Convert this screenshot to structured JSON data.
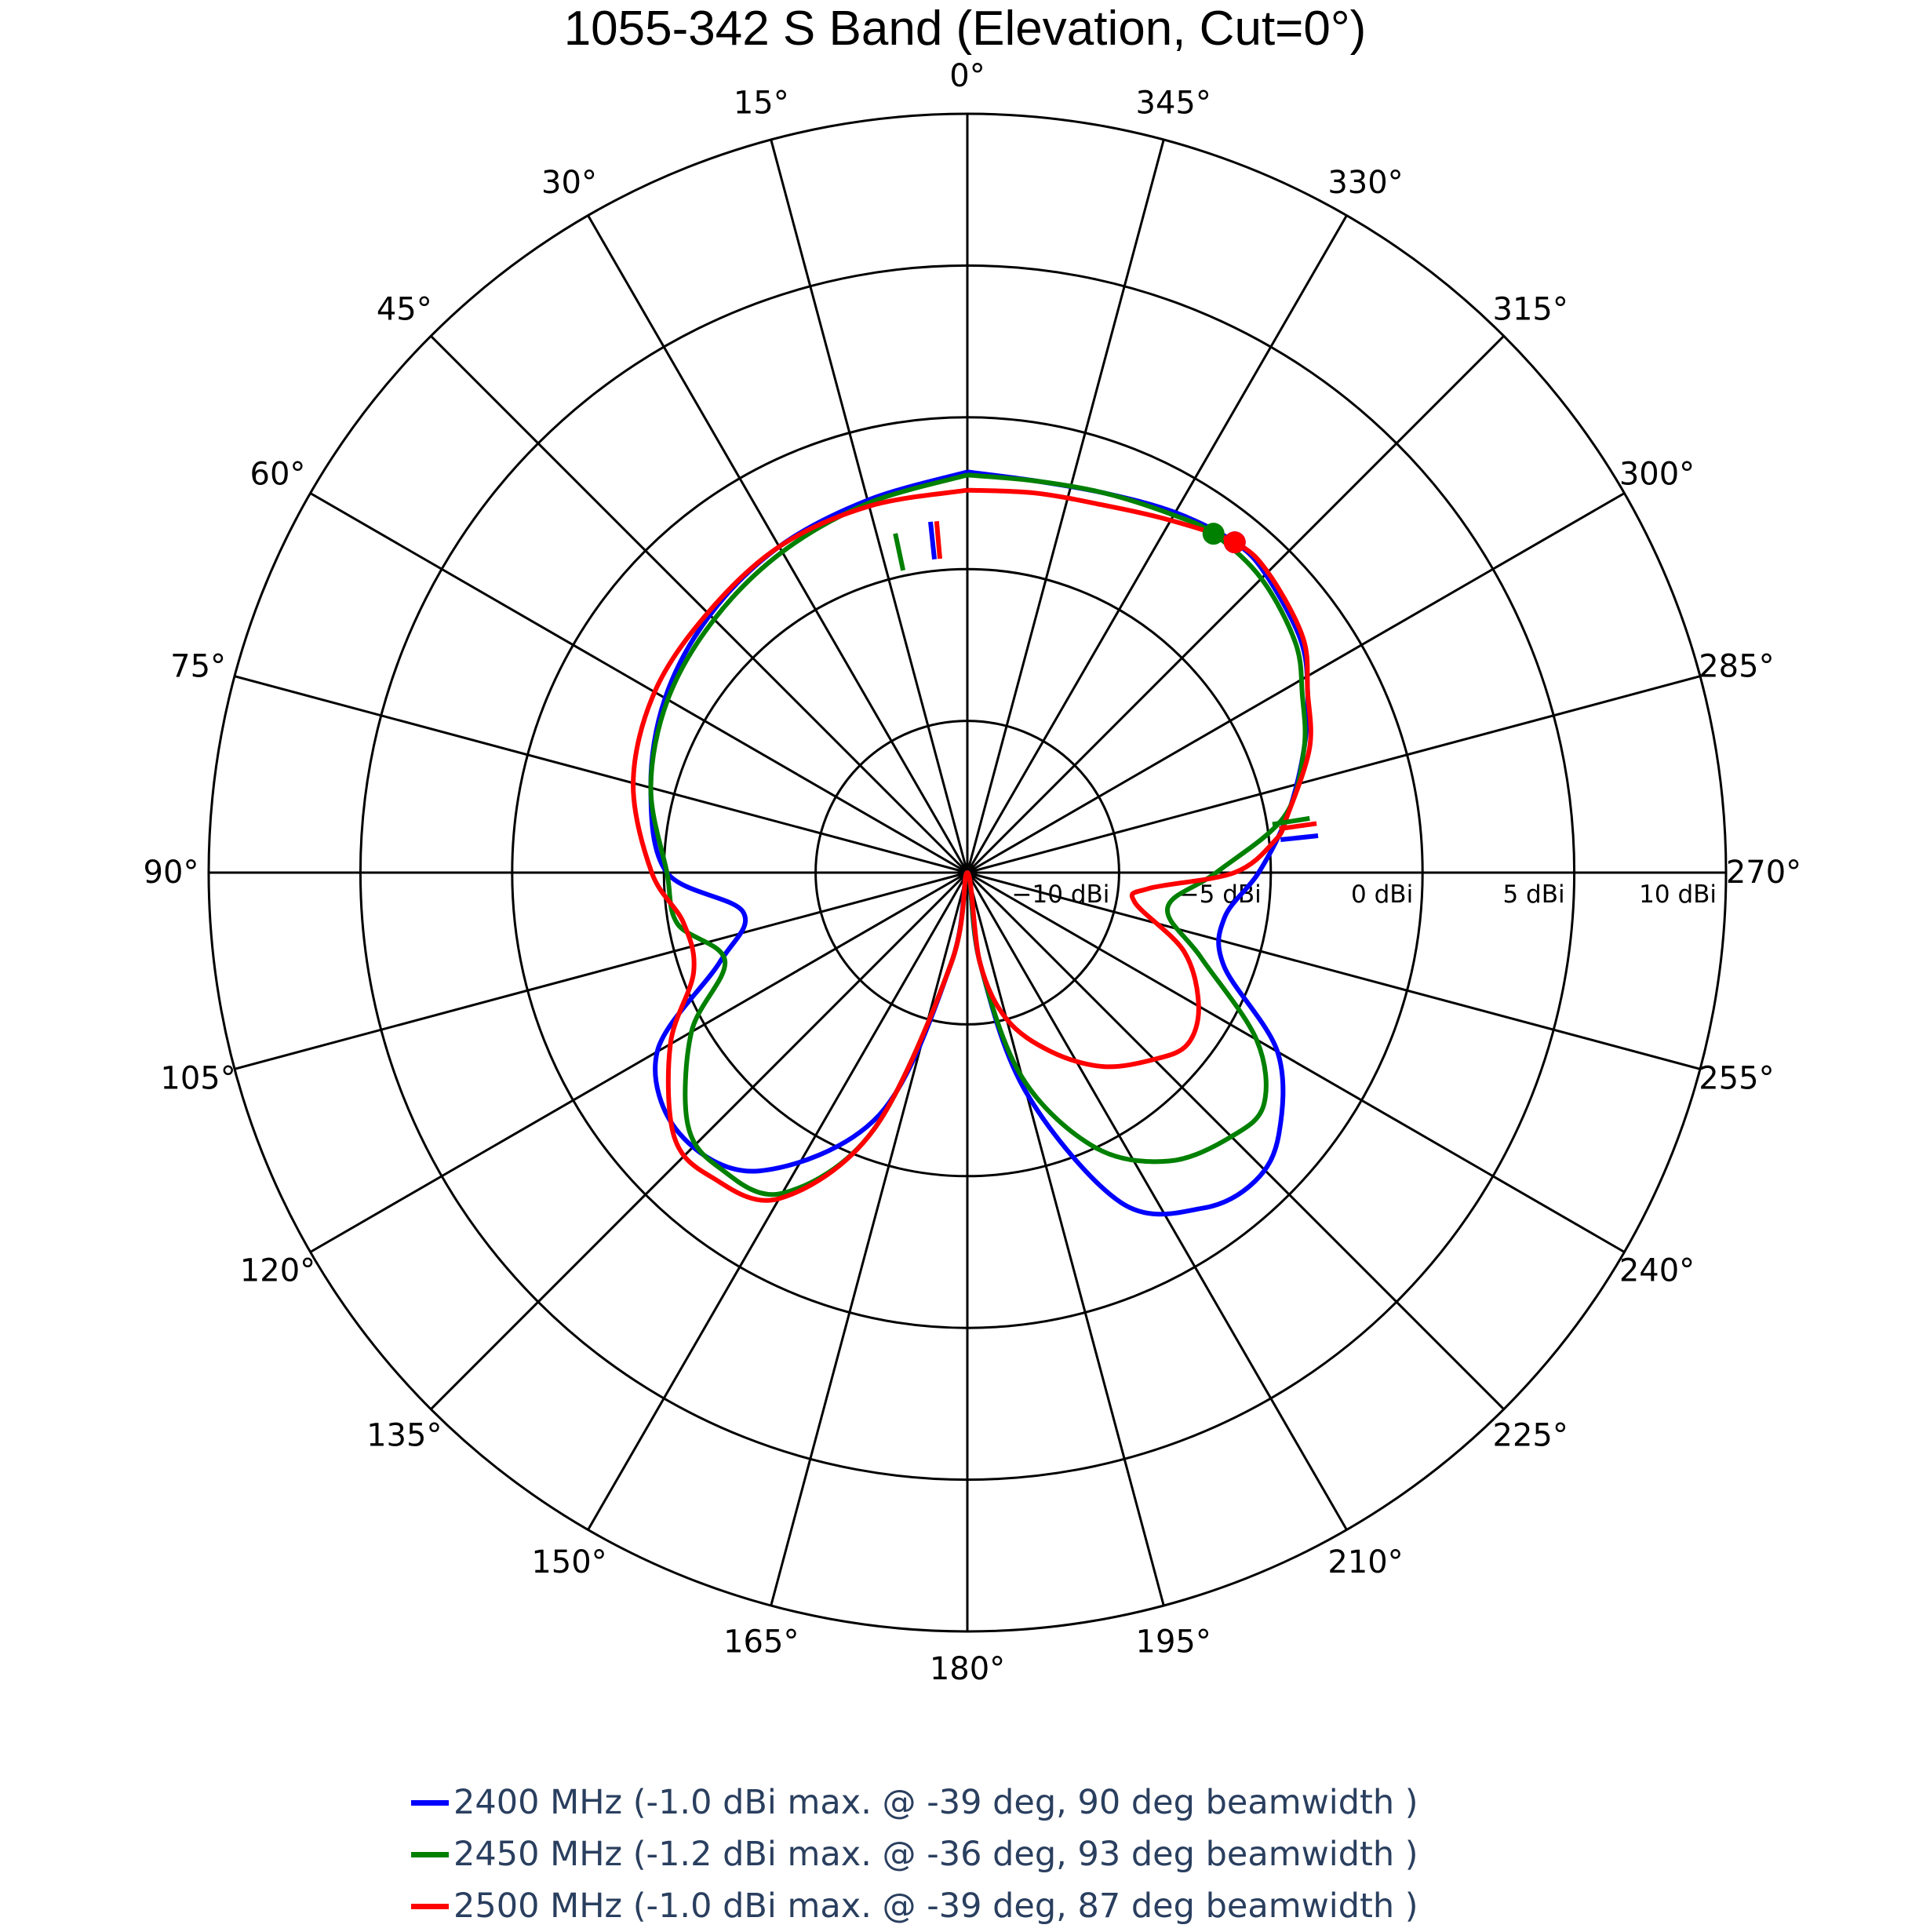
{
  "title": "1055-342 S Band (Elevation, Cut=0°)",
  "chart_data": {
    "type": "line",
    "subtype": "polar",
    "title": "1055-342 S Band (Elevation, Cut=0°)",
    "angular_axis": {
      "direction": "counterclockwise",
      "zero_at": "top",
      "tick_labels": [
        "0°",
        "15°",
        "30°",
        "45°",
        "60°",
        "75°",
        "90°",
        "105°",
        "120°",
        "135°",
        "150°",
        "165°",
        "180°",
        "195°",
        "210°",
        "225°",
        "240°",
        "255°",
        "270°",
        "285°",
        "300°",
        "315°",
        "330°",
        "345°"
      ]
    },
    "radial_axis": {
      "range": [
        -15,
        10
      ],
      "unit": "dBi",
      "tick_values": [
        -10,
        -5,
        0,
        5,
        10
      ],
      "tick_labels": [
        "−10 dBi",
        "−5 dBi",
        "0 dBi",
        "5 dBi",
        "10 dBi"
      ]
    },
    "grid": true,
    "legend_position": "bottom",
    "series": [
      {
        "name": "2400 MHz (-1.0 dBi max. @ -39 deg, 90 deg beamwidth )",
        "color": "#0000ff",
        "theta": [
          0,
          -10,
          -20,
          -30,
          -39,
          -45,
          -55,
          -62,
          -70,
          -80,
          -90,
          -100,
          -110,
          -120,
          -130,
          -137,
          -145,
          -155,
          -165,
          -172,
          -180,
          -190,
          -200,
          -215,
          -228,
          -240,
          -250,
          -260,
          -270,
          -285,
          -300,
          -315,
          -330,
          -345,
          -360
        ],
        "r": [
          -1.8,
          -1.9,
          -1.7,
          -1.3,
          -1.0,
          -1.1,
          -1.6,
          -2.3,
          -3.2,
          -4.3,
          -5.4,
          -6.4,
          -6.0,
          -3.2,
          -1.6,
          -1.1,
          -1.5,
          -3.0,
          -7.5,
          -12.0,
          -15.0,
          -12.0,
          -6.5,
          -3.0,
          -2.2,
          -3.2,
          -6.3,
          -7.5,
          -5.1,
          -4.2,
          -3.5,
          -3.0,
          -2.6,
          -2.3,
          -1.8
        ],
        "max_marker": {
          "theta": -39,
          "r": -1.0
        },
        "beamwidth_markers": [
          {
            "theta": -84,
            "r": -4.0
          },
          {
            "theta": 6,
            "r": -4.0
          }
        ]
      },
      {
        "name": "2450 MHz (-1.2 dBi max. @ -36 deg, 93 deg beamwidth )",
        "color": "#008000",
        "theta": [
          0,
          -10,
          -20,
          -30,
          -36,
          -45,
          -55,
          -62,
          -70,
          -80,
          -90,
          -100,
          -110,
          -120,
          -128,
          -135,
          -145,
          -155,
          -165,
          -172,
          -180,
          -190,
          -200,
          -210,
          -220,
          -228,
          -240,
          -250,
          -260,
          -270,
          -285,
          -300,
          -315,
          -330,
          -345,
          -360
        ],
        "r": [
          -1.9,
          -1.9,
          -1.7,
          -1.4,
          -1.2,
          -1.3,
          -1.8,
          -2.5,
          -3.2,
          -4.4,
          -6.8,
          -8.3,
          -6.8,
          -4.0,
          -2.6,
          -2.7,
          -3.4,
          -5.0,
          -8.0,
          -12.0,
          -15.0,
          -12.0,
          -6.0,
          -2.8,
          -2.3,
          -2.6,
          -4.5,
          -6.5,
          -5.3,
          -5.1,
          -4.2,
          -3.6,
          -3.2,
          -2.8,
          -2.4,
          -1.9
        ],
        "max_marker": {
          "theta": -36,
          "r": -1.2
        },
        "beamwidth_markers": [
          {
            "theta": -81,
            "r": -4.2
          },
          {
            "theta": 12,
            "r": -4.2
          }
        ]
      },
      {
        "name": "2500 MHz (-1.0 dBi max. @ -39 deg, 87 deg beamwidth )",
        "color": "#ff0000",
        "theta": [
          0,
          -10,
          -20,
          -30,
          -39,
          -45,
          -55,
          -62,
          -70,
          -80,
          -84,
          -90,
          -95,
          -100,
          -110,
          -120,
          -128,
          -135,
          -145,
          -155,
          -165,
          -172,
          -180,
          -190,
          -200,
          -210,
          -220,
          -228,
          -240,
          -250,
          -260,
          -270,
          -285,
          -300,
          -315,
          -330,
          -345,
          -360
        ],
        "r": [
          -2.4,
          -2.3,
          -2.1,
          -1.6,
          -1.0,
          -1.0,
          -1.5,
          -2.3,
          -3.0,
          -4.3,
          -4.8,
          -6.2,
          -9.0,
          -9.4,
          -7.4,
          -6.2,
          -5.8,
          -6.3,
          -7.2,
          -8.5,
          -10.0,
          -12.0,
          -15.0,
          -12.0,
          -6.0,
          -2.6,
          -1.9,
          -2.0,
          -3.7,
          -5.4,
          -5.5,
          -4.6,
          -3.6,
          -3.1,
          -2.9,
          -2.6,
          -2.5,
          -2.4
        ],
        "max_marker": {
          "theta": -39,
          "r": -1.0
        },
        "beamwidth_markers": [
          {
            "theta": -82,
            "r": -4.0
          },
          {
            "theta": 5,
            "r": -4.0
          }
        ]
      }
    ]
  },
  "legend": {
    "items": [
      {
        "label": "2400 MHz (-1.0 dBi max. @ -39 deg, 90 deg beamwidth )",
        "color": "#0000ff"
      },
      {
        "label": "2450 MHz (-1.2 dBi max. @ -36 deg, 93 deg beamwidth )",
        "color": "#008000"
      },
      {
        "label": "2500 MHz (-1.0 dBi max. @ -39 deg, 87 deg beamwidth )",
        "color": "#ff0000"
      }
    ]
  }
}
